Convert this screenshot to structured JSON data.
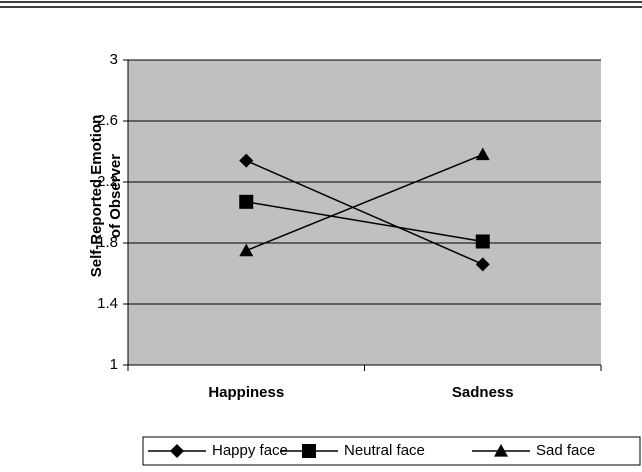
{
  "chart_data": {
    "type": "line",
    "ylabel": [
      "Self-Reported Emotion",
      "of Observer"
    ],
    "categories": [
      "Happiness",
      "Sadness"
    ],
    "series": [
      {
        "name": "Happy face",
        "marker": "diamond",
        "color": "#000000",
        "values": [
          2.34,
          1.66
        ]
      },
      {
        "name": "Neutral face",
        "marker": "square",
        "color": "#000000",
        "values": [
          2.07,
          1.81
        ]
      },
      {
        "name": "Sad face",
        "marker": "triangle",
        "color": "#000000",
        "values": [
          1.75,
          2.38
        ]
      }
    ],
    "ylim": [
      1,
      3
    ],
    "yticks": [
      1,
      1.4,
      1.8,
      2.2,
      2.6,
      3
    ],
    "grid": true,
    "legend": "bottom"
  }
}
